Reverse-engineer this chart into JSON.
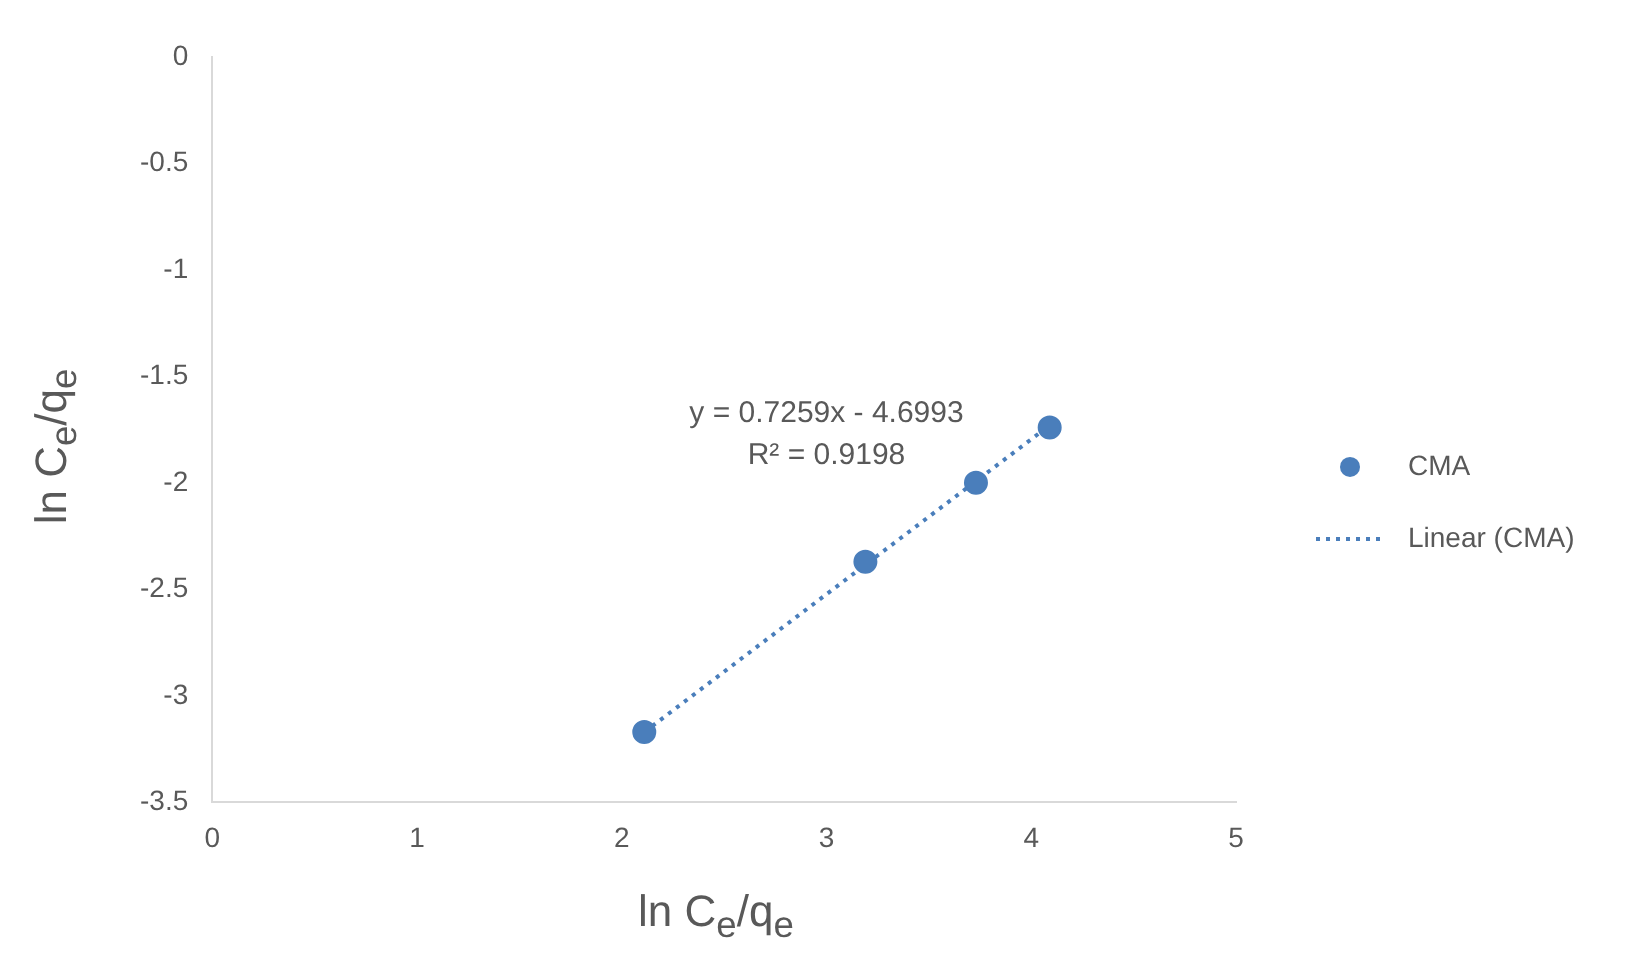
{
  "chart_data": {
    "type": "scatter",
    "xlabel": "ln C$_{e}$/q$_{e}$",
    "ylabel": "ln C$_{e}$/q$_{e}$",
    "xlim": [
      0,
      5
    ],
    "xticks": [
      0,
      1,
      2,
      3,
      4,
      5
    ],
    "ylim": [
      -3.5,
      0
    ],
    "yticks": [
      0,
      -0.5,
      -1,
      -1.5,
      -2,
      -2.5,
      -3,
      -3.5
    ],
    "grid": false,
    "legend": "right",
    "marker": "circle",
    "series": [
      {
        "name": "CMA",
        "color": "#4a7ebb",
        "x": [
          2.11,
          3.19,
          3.73,
          4.09
        ],
        "values": [
          -3.17,
          -2.37,
          -2.0,
          -1.74
        ]
      },
      {
        "name": "Linear (CMA)",
        "type": "line",
        "color": "#4a7ebb",
        "line_style": "dotted",
        "marker": "none",
        "x": [
          2.11,
          4.09
        ],
        "values": [
          -3.17,
          -1.73
        ]
      }
    ],
    "annotations": [
      "y = 0.7259x - 4.6993",
      "R² = 0.9198"
    ]
  }
}
